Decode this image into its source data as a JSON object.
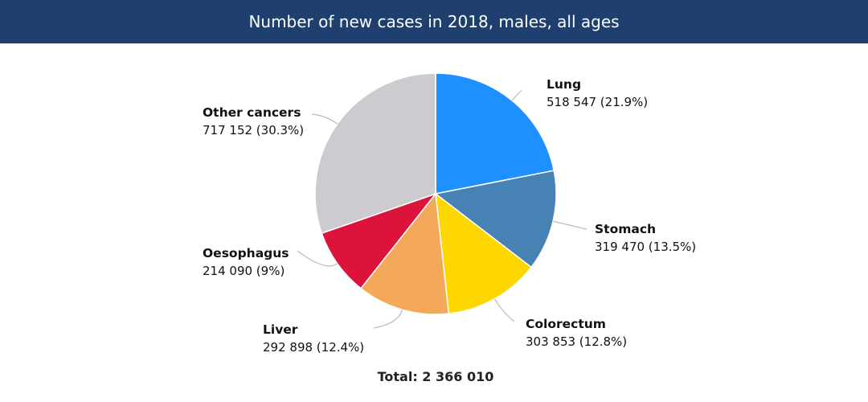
{
  "header": {
    "title": "Number of new cases in 2018, males, all ages"
  },
  "chart_data": {
    "type": "pie",
    "title": "Number of new cases in 2018, males, all ages",
    "slices": [
      {
        "label": "Lung",
        "value": 518547,
        "value_text": "518 547 (21.9%)",
        "percent": 21.9,
        "color": "#1e90ff"
      },
      {
        "label": "Stomach",
        "value": 319470,
        "value_text": "319 470 (13.5%)",
        "percent": 13.5,
        "color": "#4682b4"
      },
      {
        "label": "Colorectum",
        "value": 303853,
        "value_text": "303 853 (12.8%)",
        "percent": 12.8,
        "color": "#ffd700"
      },
      {
        "label": "Liver",
        "value": 292898,
        "value_text": "292 898 (12.4%)",
        "percent": 12.4,
        "color": "#f4a95a"
      },
      {
        "label": "Oesophagus",
        "value": 214090,
        "value_text": "214 090 (9%)",
        "percent": 9,
        "color": "#dc143c"
      },
      {
        "label": "Other cancers",
        "value": 717152,
        "value_text": "717 152 (30.3%)",
        "percent": 30.3,
        "color": "#cdcbd0"
      }
    ],
    "total_label": "Total: 2 366 010"
  }
}
